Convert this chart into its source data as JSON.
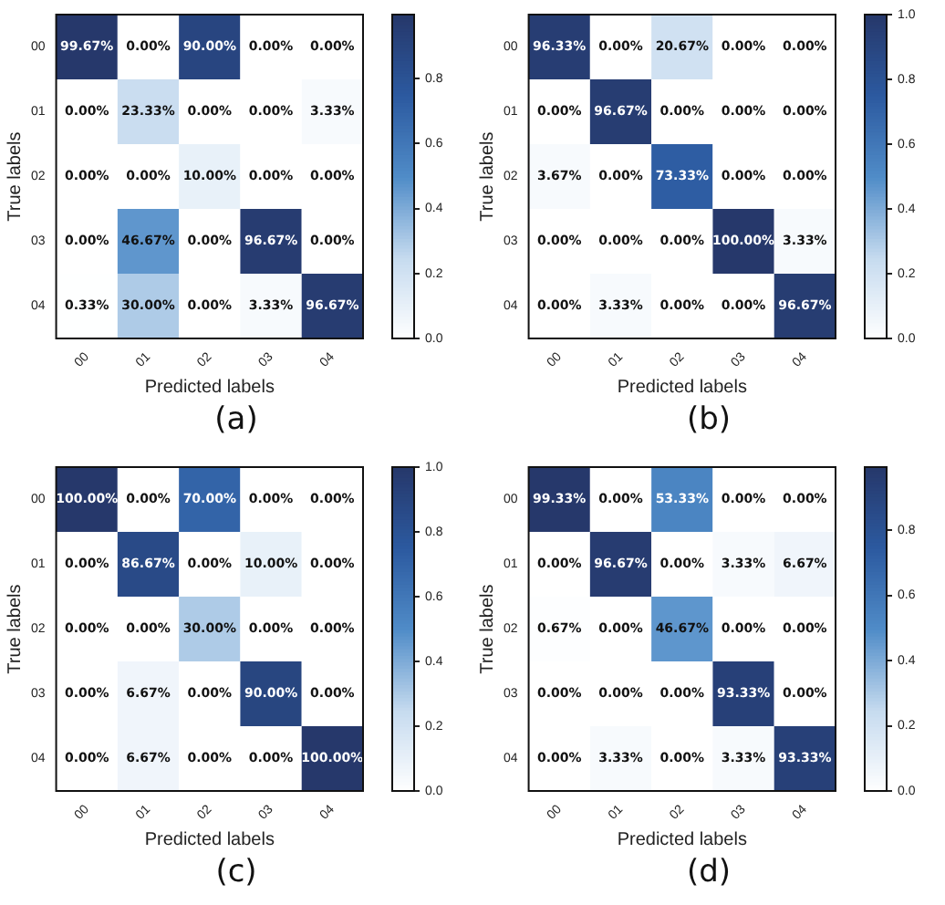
{
  "chart_data": [
    {
      "type": "heatmap",
      "title": "(a)",
      "xlabel": "Predicted labels",
      "ylabel": "True labels",
      "categories": [
        "00",
        "01",
        "02",
        "03",
        "04"
      ],
      "y_categories": [
        "00",
        "01",
        "02",
        "03",
        "04"
      ],
      "cells": [
        [
          0.9967,
          0,
          0.9,
          0,
          0
        ],
        [
          0,
          0.2333,
          0,
          0,
          0.0333
        ],
        [
          0,
          0,
          0.1,
          0,
          0
        ],
        [
          0,
          0.4667,
          0,
          0.9667,
          0
        ],
        [
          0.0033,
          0.3,
          0,
          0.0333,
          0.9667
        ]
      ],
      "cell_labels": [
        [
          "99.67%",
          "0.00%",
          "90.00%",
          "0.00%",
          "0.00%"
        ],
        [
          "0.00%",
          "23.33%",
          "0.00%",
          "0.00%",
          "3.33%"
        ],
        [
          "0.00%",
          "0.00%",
          "10.00%",
          "0.00%",
          "0.00%"
        ],
        [
          "0.00%",
          "46.67%",
          "0.00%",
          "96.67%",
          "0.00%"
        ],
        [
          "0.33%",
          "30.00%",
          "0.00%",
          "3.33%",
          "96.67%"
        ]
      ],
      "clim": [
        0,
        0.9967
      ],
      "cticks": [
        {
          "value": 0,
          "label": "0.0"
        },
        {
          "value": 0.2,
          "label": "0.2"
        },
        {
          "value": 0.4,
          "label": "0.4"
        },
        {
          "value": 0.6,
          "label": "0.6"
        },
        {
          "value": 0.8,
          "label": "0.8"
        }
      ]
    },
    {
      "type": "heatmap",
      "title": "(b)",
      "xlabel": "Predicted labels",
      "ylabel": "True labels",
      "categories": [
        "00",
        "01",
        "02",
        "03",
        "04"
      ],
      "y_categories": [
        "00",
        "01",
        "02",
        "03",
        "04"
      ],
      "cells": [
        [
          0.9633,
          0,
          0.2067,
          0,
          0
        ],
        [
          0,
          0.9667,
          0,
          0,
          0
        ],
        [
          0.0367,
          0,
          0.7333,
          0,
          0
        ],
        [
          0,
          0,
          0,
          1,
          0.0333
        ],
        [
          0,
          0.0333,
          0,
          0,
          0.9667
        ]
      ],
      "cell_labels": [
        [
          "96.33%",
          "0.00%",
          "20.67%",
          "0.00%",
          "0.00%"
        ],
        [
          "0.00%",
          "96.67%",
          "0.00%",
          "0.00%",
          "0.00%"
        ],
        [
          "3.67%",
          "0.00%",
          "73.33%",
          "0.00%",
          "0.00%"
        ],
        [
          "0.00%",
          "0.00%",
          "0.00%",
          "100.00%",
          "3.33%"
        ],
        [
          "0.00%",
          "3.33%",
          "0.00%",
          "0.00%",
          "96.67%"
        ]
      ],
      "clim": [
        0,
        1
      ],
      "cticks": [
        {
          "value": 0,
          "label": "0.0"
        },
        {
          "value": 0.2,
          "label": "0.2"
        },
        {
          "value": 0.4,
          "label": "0.4"
        },
        {
          "value": 0.6,
          "label": "0.6"
        },
        {
          "value": 0.8,
          "label": "0.8"
        },
        {
          "value": 1,
          "label": "1.0"
        }
      ]
    },
    {
      "type": "heatmap",
      "title": "(c)",
      "xlabel": "Predicted labels",
      "ylabel": "True labels",
      "categories": [
        "00",
        "01",
        "02",
        "03",
        "04"
      ],
      "y_categories": [
        "00",
        "01",
        "02",
        "03",
        "04"
      ],
      "cells": [
        [
          1,
          0,
          0.7,
          0,
          0
        ],
        [
          0,
          0.8667,
          0,
          0.1,
          0
        ],
        [
          0,
          0,
          0.3,
          0,
          0
        ],
        [
          0,
          0.0667,
          0,
          0.9,
          0
        ],
        [
          0,
          0.0667,
          0,
          0,
          1
        ]
      ],
      "cell_labels": [
        [
          "100.00%",
          "0.00%",
          "70.00%",
          "0.00%",
          "0.00%"
        ],
        [
          "0.00%",
          "86.67%",
          "0.00%",
          "10.00%",
          "0.00%"
        ],
        [
          "0.00%",
          "0.00%",
          "30.00%",
          "0.00%",
          "0.00%"
        ],
        [
          "0.00%",
          "6.67%",
          "0.00%",
          "90.00%",
          "0.00%"
        ],
        [
          "0.00%",
          "6.67%",
          "0.00%",
          "0.00%",
          "100.00%"
        ]
      ],
      "clim": [
        0,
        1
      ],
      "cticks": [
        {
          "value": 0,
          "label": "0.0"
        },
        {
          "value": 0.2,
          "label": "0.2"
        },
        {
          "value": 0.4,
          "label": "0.4"
        },
        {
          "value": 0.6,
          "label": "0.6"
        },
        {
          "value": 0.8,
          "label": "0.8"
        },
        {
          "value": 1,
          "label": "1.0"
        }
      ]
    },
    {
      "type": "heatmap",
      "title": "(d)",
      "xlabel": "Predicted labels",
      "ylabel": "True labels",
      "categories": [
        "00",
        "01",
        "02",
        "03",
        "04"
      ],
      "y_categories": [
        "00",
        "01",
        "02",
        "03",
        "04"
      ],
      "cells": [
        [
          0.9933,
          0,
          0.5333,
          0,
          0
        ],
        [
          0,
          0.9667,
          0,
          0.0333,
          0.0667
        ],
        [
          0.0067,
          0,
          0.4667,
          0,
          0
        ],
        [
          0,
          0,
          0,
          0.9333,
          0
        ],
        [
          0,
          0.0333,
          0,
          0.0333,
          0.9333
        ]
      ],
      "cell_labels": [
        [
          "99.33%",
          "0.00%",
          "53.33%",
          "0.00%",
          "0.00%"
        ],
        [
          "0.00%",
          "96.67%",
          "0.00%",
          "3.33%",
          "6.67%"
        ],
        [
          "0.67%",
          "0.00%",
          "46.67%",
          "0.00%",
          "0.00%"
        ],
        [
          "0.00%",
          "0.00%",
          "0.00%",
          "93.33%",
          "0.00%"
        ],
        [
          "0.00%",
          "3.33%",
          "0.00%",
          "3.33%",
          "93.33%"
        ]
      ],
      "clim": [
        0,
        0.9933
      ],
      "cticks": [
        {
          "value": 0,
          "label": "0.0"
        },
        {
          "value": 0.2,
          "label": "0.2"
        },
        {
          "value": 0.4,
          "label": "0.4"
        },
        {
          "value": 0.6,
          "label": "0.6"
        },
        {
          "value": 0.8,
          "label": "0.8"
        }
      ]
    }
  ]
}
